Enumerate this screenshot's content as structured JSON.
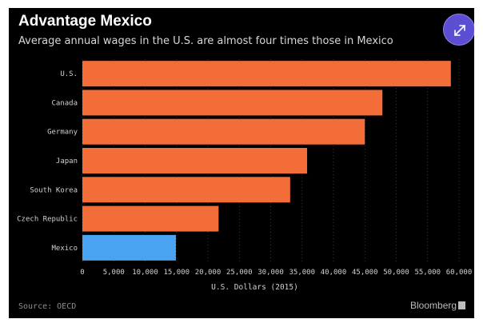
{
  "header": {
    "title": "Advantage Mexico",
    "subtitle": "Average annual wages in the U.S. are almost four times those in Mexico"
  },
  "footer": {
    "source": "Source: OECD",
    "brand": "Bloomberg"
  },
  "icons": {
    "expand": "expand-arrows-icon"
  },
  "colors": {
    "background": "#000000",
    "bar": "#f26d38",
    "highlight": "#4aa3f0",
    "expand_button": "#5b4ed2"
  },
  "chart_data": {
    "type": "bar",
    "orientation": "horizontal",
    "categories": [
      "U.S.",
      "Canada",
      "Germany",
      "Japan",
      "South Korea",
      "Czech Republic",
      "Mexico"
    ],
    "values": [
      58700,
      47800,
      45000,
      35800,
      33100,
      21700,
      14900
    ],
    "highlight": "Mexico",
    "xlabel": "U.S. Dollars (2015)",
    "ylabel": "",
    "xlim": [
      0,
      60000
    ],
    "xticks": [
      "0",
      "5,000",
      "10,000",
      "15,000",
      "20,000",
      "25,000",
      "30,000",
      "35,000",
      "40,000",
      "45,000",
      "50,000",
      "55,000",
      "60,000"
    ],
    "grid": "vertical dotted"
  }
}
